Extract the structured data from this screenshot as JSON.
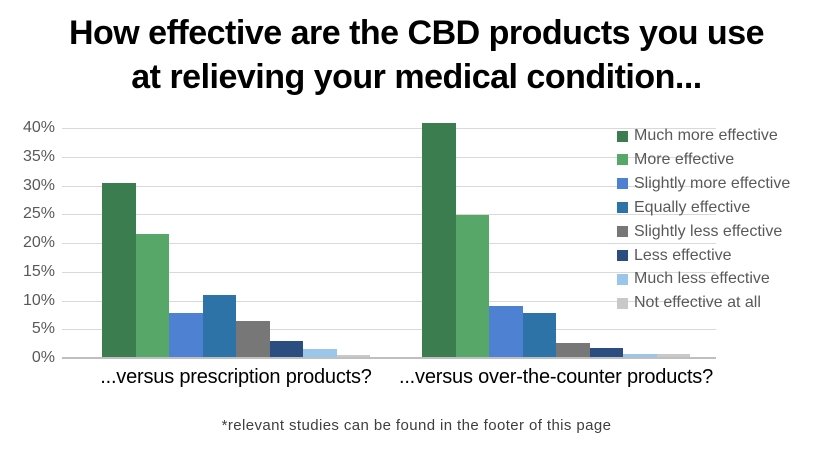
{
  "title": {
    "line1": "How effective are the CBD products you use",
    "line2": "at relieving your medical condition..."
  },
  "footnote": "*relevant studies can be found in the footer of this page",
  "colors": {
    "gridline": "#d9d9d9",
    "axis_line": "#bfbfbf",
    "tick_text": "#595959",
    "legend_text": "#595959",
    "title_text": "#000000",
    "category_text": "#000000",
    "footnote_text": "#3f3f3f"
  },
  "chart_data": {
    "type": "bar",
    "title": "How effective are the CBD products you use at relieving your medical condition...",
    "categories": [
      "...versus prescription products?",
      "...versus over-the-counter products?"
    ],
    "series": [
      {
        "name": "Much more effective",
        "color": "#3B7D4E",
        "values": [
          30.4,
          40.9
        ]
      },
      {
        "name": "More effective",
        "color": "#57A769",
        "values": [
          21.6,
          24.8
        ]
      },
      {
        "name": "Slightly more effective",
        "color": "#4E81D2",
        "values": [
          7.8,
          9.0
        ]
      },
      {
        "name": "Equally effective",
        "color": "#2D73A7",
        "values": [
          11.0,
          7.8
        ]
      },
      {
        "name": "Slightly less effective",
        "color": "#777777",
        "values": [
          6.4,
          2.6
        ]
      },
      {
        "name": "Less effective",
        "color": "#2C4D7F",
        "values": [
          3.0,
          1.8
        ]
      },
      {
        "name": "Much less effective",
        "color": "#9AC6EC",
        "values": [
          1.5,
          0.7
        ]
      },
      {
        "name": "Not effective at all",
        "color": "#C9C9C9",
        "values": [
          0.6,
          0.7
        ]
      }
    ],
    "xlabel": "",
    "ylabel": "",
    "ylim": [
      0,
      40
    ],
    "ytick_step": 5,
    "ytick_labels": [
      "0%",
      "5%",
      "10%",
      "15%",
      "20%",
      "25%",
      "30%",
      "35%",
      "40%"
    ],
    "grid": true,
    "legend_position": "right"
  }
}
